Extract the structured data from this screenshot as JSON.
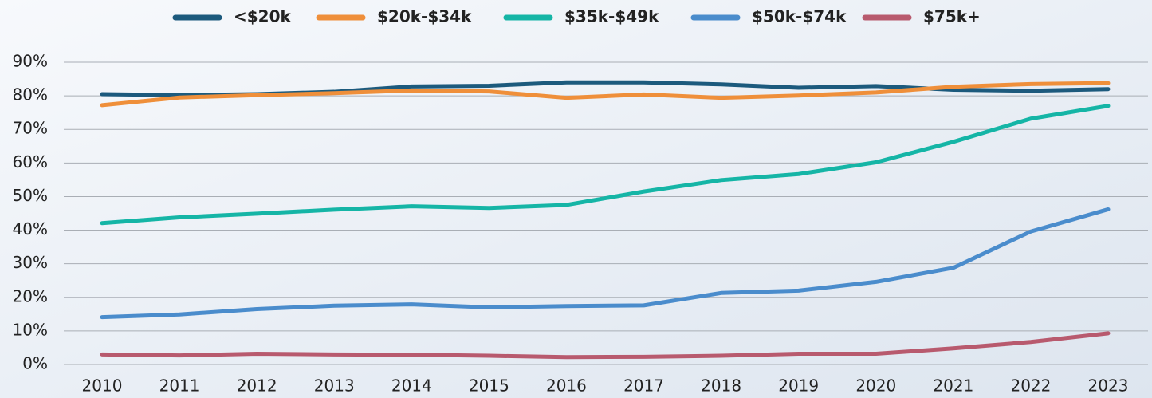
{
  "chart_data": {
    "type": "line",
    "categories": [
      "2010",
      "2011",
      "2012",
      "2013",
      "2014",
      "2015",
      "2016",
      "2017",
      "2018",
      "2019",
      "2020",
      "2021",
      "2022",
      "2023"
    ],
    "series": [
      {
        "name": "<$20k",
        "color": "#1c5a7d",
        "values": [
          80.5,
          80.2,
          80.5,
          81.2,
          82.8,
          83.0,
          84.0,
          84.0,
          83.4,
          82.4,
          82.9,
          81.8,
          81.5,
          82.0
        ]
      },
      {
        "name": "$20k-$34k",
        "color": "#ef8f3a",
        "values": [
          77.2,
          79.5,
          80.2,
          80.8,
          81.6,
          81.3,
          79.4,
          80.4,
          79.4,
          80.1,
          81.0,
          82.7,
          83.5,
          83.8
        ]
      },
      {
        "name": "$35k-$49k",
        "color": "#15b5a6",
        "values": [
          42.1,
          43.8,
          44.9,
          46.1,
          47.1,
          46.6,
          47.5,
          51.5,
          54.9,
          56.7,
          60.2,
          66.3,
          73.2,
          77.0
        ]
      },
      {
        "name": "$50k-$74k",
        "color": "#4a8ccc",
        "values": [
          14.1,
          14.9,
          16.5,
          17.5,
          17.9,
          17.0,
          17.4,
          17.6,
          21.3,
          22.0,
          24.6,
          28.8,
          39.6,
          46.2
        ]
      },
      {
        "name": "$75k+",
        "color": "#b85a6e",
        "values": [
          3.0,
          2.7,
          3.2,
          3.0,
          2.9,
          2.6,
          2.2,
          2.3,
          2.6,
          3.2,
          3.2,
          4.8,
          6.7,
          9.3
        ]
      }
    ],
    "ylim": [
      0,
      90
    ],
    "yticks": [
      {
        "value": 0,
        "label": "0%"
      },
      {
        "value": 10,
        "label": "10%"
      },
      {
        "value": 20,
        "label": "20%"
      },
      {
        "value": 30,
        "label": "30%"
      },
      {
        "value": 40,
        "label": "40%"
      },
      {
        "value": 50,
        "label": "50%"
      },
      {
        "value": 60,
        "label": "60%"
      },
      {
        "value": 70,
        "label": "70%"
      },
      {
        "value": 80,
        "label": "80%"
      },
      {
        "value": 90,
        "label": "90%"
      }
    ],
    "grid": true,
    "legend": "top"
  }
}
